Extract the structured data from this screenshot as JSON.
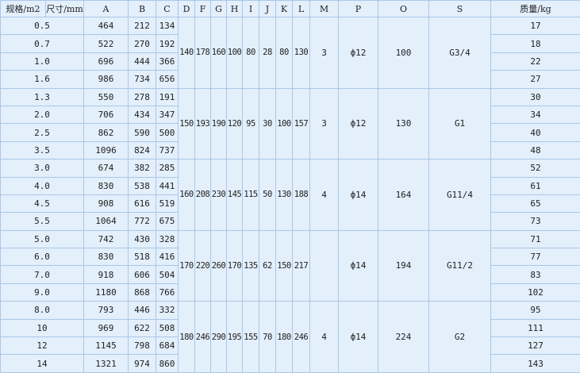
{
  "headers": [
    "规格/m2",
    "尺寸/mm",
    "A",
    "B",
    "C",
    "D",
    "F",
    "G",
    "H",
    "I",
    "J",
    "K",
    "L",
    "M",
    "P",
    "O",
    "S",
    "质量/kg"
  ],
  "groups": [
    {
      "shared": {
        "D": "140",
        "F": "178",
        "G": "160",
        "H": "100",
        "I": "80",
        "J": "28",
        "K": "80",
        "L": "130",
        "M": "3",
        "P": "ф12",
        "O": "100",
        "S": "G3/4"
      },
      "rows": [
        {
          "spec": "0.5",
          "A": "464",
          "B": "212",
          "C": "134",
          "mass": "17"
        },
        {
          "spec": "0.7",
          "A": "522",
          "B": "270",
          "C": "192",
          "mass": "18"
        },
        {
          "spec": "1.0",
          "A": "696",
          "B": "444",
          "C": "366",
          "mass": "22"
        },
        {
          "spec": "1.6",
          "A": "986",
          "B": "734",
          "C": "656",
          "mass": "27"
        }
      ]
    },
    {
      "shared": {
        "D": "150",
        "F": "193",
        "G": "190",
        "H": "120",
        "I": "95",
        "J": "30",
        "K": "100",
        "L": "157",
        "M": "3",
        "P": "ф12",
        "O": "130",
        "S": "G1"
      },
      "rows": [
        {
          "spec": "1.3",
          "A": "550",
          "B": "278",
          "C": "191",
          "mass": "30"
        },
        {
          "spec": "2.0",
          "A": "706",
          "B": "434",
          "C": "347",
          "mass": "34"
        },
        {
          "spec": "2.5",
          "A": "862",
          "B": "590",
          "C": "500",
          "mass": "40"
        },
        {
          "spec": "3.5",
          "A": "1096",
          "B": "824",
          "C": "737",
          "mass": "48"
        }
      ]
    },
    {
      "shared": {
        "D": "160",
        "F": "208",
        "G": "230",
        "H": "145",
        "I": "115",
        "J": "50",
        "K": "130",
        "L": "188",
        "M": "4",
        "P": "ф14",
        "O": "164",
        "S": "G11/4"
      },
      "rows": [
        {
          "spec": "3.0",
          "A": "674",
          "B": "382",
          "C": "285",
          "mass": "52"
        },
        {
          "spec": "4.0",
          "A": "830",
          "B": "538",
          "C": "441",
          "mass": "61"
        },
        {
          "spec": "4.5",
          "A": "908",
          "B": "616",
          "C": "519",
          "mass": "65"
        },
        {
          "spec": "5.5",
          "A": "1064",
          "B": "772",
          "C": "675",
          "mass": "73"
        }
      ]
    },
    {
      "shared": {
        "D": "170",
        "F": "220",
        "G": "260",
        "H": "170",
        "I": "135",
        "J": "62",
        "K": "150",
        "L": "217",
        "M": "",
        "P": "ф14",
        "O": "194",
        "S": "G11/2"
      },
      "rows": [
        {
          "spec": "5.0",
          "A": "742",
          "B": "430",
          "C": "328",
          "mass": "71"
        },
        {
          "spec": "6.0",
          "A": "830",
          "B": "518",
          "C": "416",
          "mass": "77"
        },
        {
          "spec": "7.0",
          "A": "918",
          "B": "606",
          "C": "504",
          "mass": "83"
        },
        {
          "spec": "9.0",
          "A": "1180",
          "B": "868",
          "C": "766",
          "mass": "102"
        }
      ]
    },
    {
      "shared": {
        "D": "180",
        "F": "246",
        "G": "290",
        "H": "195",
        "I": "155",
        "J": "70",
        "K": "180",
        "L": "246",
        "M": "4",
        "P": "ф14",
        "O": "224",
        "S": "G2"
      },
      "rows": [
        {
          "spec": "8.0",
          "A": "793",
          "B": "446",
          "C": "332",
          "mass": "95"
        },
        {
          "spec": "10",
          "A": "969",
          "B": "622",
          "C": "508",
          "mass": "111"
        },
        {
          "spec": "12",
          "A": "1145",
          "B": "798",
          "C": "684",
          "mass": "127"
        },
        {
          "spec": "14",
          "A": "1321",
          "B": "974",
          "C": "860",
          "mass": "143"
        }
      ]
    }
  ]
}
